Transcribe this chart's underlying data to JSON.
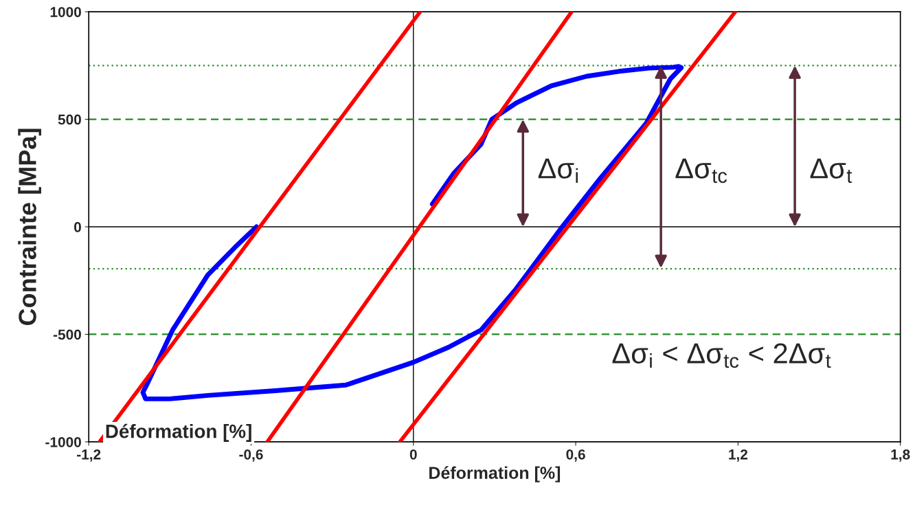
{
  "chart_data": {
    "type": "line",
    "xlabel": "Déformation [%]",
    "ylabel": "Contrainte [MPa]",
    "xlim": [
      -1.2,
      1.8
    ],
    "ylim": [
      -1000,
      1000
    ],
    "xticks": [
      {
        "value": -1.2,
        "label": "-1,2"
      },
      {
        "value": -0.6,
        "label": "-0,6"
      },
      0,
      {
        "value": 0.6,
        "label": "0,6"
      },
      {
        "value": 1.2,
        "label": "1,2"
      },
      {
        "value": 1.8,
        "label": "1,8"
      }
    ],
    "yticks": [
      -1000,
      -500,
      0,
      500,
      1000
    ],
    "grid": false,
    "legend": false,
    "marker": "none",
    "line_style": "solid",
    "series": [
      {
        "color": "#ff0000",
        "x": [
          -1.16,
          0.025
        ],
        "values": [
          -1000,
          1000
        ]
      },
      {
        "color": "#ff0000",
        "x": [
          -0.54,
          0.585
        ],
        "values": [
          -1000,
          1000
        ]
      },
      {
        "color": "#ff0000",
        "x": [
          -0.05,
          1.19
        ],
        "values": [
          -1000,
          1000
        ]
      },
      {
        "color": "#0000ff",
        "x": [
          0.07,
          0.15,
          0.25,
          0.29,
          0.38,
          0.51,
          0.64,
          0.76,
          0.87,
          0.96,
          0.98,
          0.99,
          0.95,
          0.86,
          0.69,
          0.55,
          0.38,
          0.25,
          0.13,
          0.0,
          -0.25,
          -0.51,
          -0.76,
          -0.9,
          -0.99,
          -1.0,
          -0.98,
          -0.89,
          -0.76,
          -0.66,
          -0.58
        ],
        "values": [
          106,
          250,
          384,
          500,
          576,
          656,
          700,
          723,
          738,
          742,
          746,
          740,
          688,
          480,
          224,
          0,
          -288,
          -480,
          -560,
          -630,
          -736,
          -762,
          -784,
          -800,
          -800,
          -770,
          -720,
          -480,
          -224,
          -96,
          0
        ]
      }
    ],
    "ref_lines": [
      {
        "axis": "y",
        "value": 0,
        "color": "#000000",
        "line_style": "solid"
      },
      {
        "axis": "x",
        "value": 0,
        "color": "#000000",
        "line_style": "solid"
      },
      {
        "axis": "y",
        "value": 750,
        "color": "#228b22",
        "line_style": "dotted"
      },
      {
        "axis": "y",
        "value": 500,
        "color": "#228b22",
        "line_style": "dashed"
      },
      {
        "axis": "y",
        "value": -195,
        "color": "#228b22",
        "line_style": "dotted"
      },
      {
        "axis": "y",
        "value": -500,
        "color": "#228b22",
        "line_style": "dashed"
      }
    ],
    "annotations": [
      "Δσ$_{i}$",
      "Δσ$_{tc}$",
      "Δσ$_{t}$",
      "Δσ$_{i}$ < Δσ$_{tc}$ < 2Δσ$_{t}$",
      "Déformation [%]"
    ]
  }
}
